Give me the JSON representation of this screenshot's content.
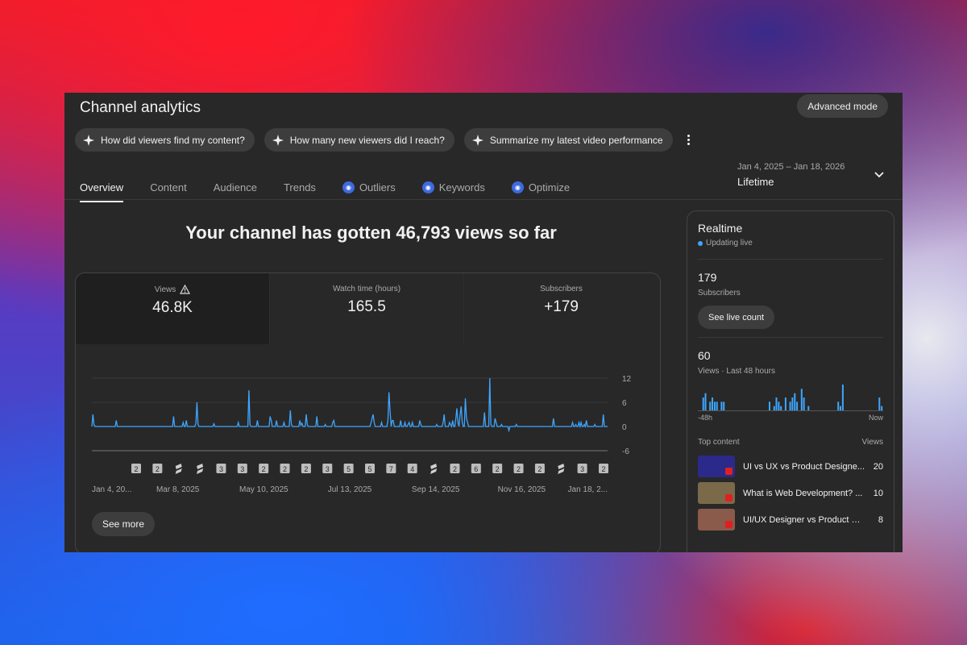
{
  "header": {
    "title": "Channel analytics",
    "advanced_mode": "Advanced mode"
  },
  "chips": [
    {
      "label": "How did viewers find my content?"
    },
    {
      "label": "How many new viewers did I reach?"
    },
    {
      "label": "Summarize my latest video performance"
    }
  ],
  "tabs": [
    {
      "label": "Overview",
      "active": true,
      "icon": false
    },
    {
      "label": "Content",
      "active": false,
      "icon": false
    },
    {
      "label": "Audience",
      "active": false,
      "icon": false
    },
    {
      "label": "Trends",
      "active": false,
      "icon": false
    },
    {
      "label": "Outliers",
      "active": false,
      "icon": true
    },
    {
      "label": "Keywords",
      "active": false,
      "icon": true
    },
    {
      "label": "Optimize",
      "active": false,
      "icon": true
    }
  ],
  "date_range": {
    "range": "Jan 4, 2025 – Jan 18, 2026",
    "period": "Lifetime"
  },
  "headline": "Your channel has gotten 46,793 views so far",
  "metrics": [
    {
      "label": "Views",
      "value": "46.8K",
      "warning": true
    },
    {
      "label": "Watch time (hours)",
      "value": "165.5",
      "warning": false
    },
    {
      "label": "Subscribers",
      "value": "+179",
      "warning": false
    }
  ],
  "see_more": "See more",
  "colors": {
    "accent": "#3ea6ff",
    "panel": "#282828"
  },
  "chart_data": {
    "type": "line",
    "series": [
      {
        "values": [
          0,
          3,
          0.5,
          0,
          0,
          0,
          0,
          0,
          0,
          0,
          0,
          0,
          0,
          0,
          0,
          0,
          0,
          0,
          0,
          0,
          0,
          0,
          0,
          1.5,
          0,
          0,
          0,
          0,
          0,
          0,
          0,
          0,
          0,
          0,
          0,
          0,
          0,
          0,
          0,
          0,
          0,
          0,
          0,
          0,
          0,
          0,
          0,
          0,
          0,
          0,
          0,
          0,
          0,
          0,
          0,
          0,
          0,
          0,
          0,
          0,
          0,
          0,
          0,
          0,
          0,
          0,
          0,
          0,
          0,
          0,
          0,
          0,
          0,
          0,
          0,
          0,
          0,
          2.5,
          0,
          0,
          0,
          0,
          0,
          0,
          0,
          0,
          1,
          0,
          0,
          1.5,
          0,
          0,
          0,
          0,
          0,
          0,
          0,
          0,
          0.8,
          6,
          0.5,
          0,
          0,
          0,
          0,
          0,
          0,
          0,
          0,
          0,
          0,
          0,
          0,
          0,
          0,
          0.7,
          0,
          0,
          0,
          0,
          0,
          0,
          0,
          0,
          0,
          0,
          0,
          0,
          0,
          0,
          0,
          0,
          0,
          0,
          0,
          0,
          0,
          0,
          1,
          0,
          0,
          0,
          0,
          0,
          0,
          0,
          0,
          0,
          9,
          0.5,
          0,
          0,
          0,
          0,
          0,
          0,
          1.5,
          0,
          0,
          0,
          0,
          0,
          0,
          0,
          0,
          0,
          0,
          0,
          2.5,
          1.5,
          0,
          0,
          0,
          0,
          1.5,
          0,
          0,
          0,
          0,
          0,
          0,
          1,
          0,
          0,
          0,
          0,
          0,
          4,
          0.5,
          0,
          0,
          0,
          0,
          0,
          0,
          0,
          1.5,
          0.3,
          0.8,
          0,
          0,
          0,
          3,
          0.5,
          0,
          0,
          0,
          0,
          0,
          0,
          0,
          0,
          2.5,
          0,
          0,
          0,
          0,
          0,
          0,
          0,
          0.5,
          0,
          0,
          0,
          0,
          0,
          0,
          1,
          1.5,
          0,
          0,
          0,
          0,
          0,
          0,
          0,
          0,
          0,
          0,
          0,
          0,
          0,
          0,
          0,
          0,
          0,
          0,
          0,
          0,
          0,
          0,
          0,
          0,
          0,
          0,
          0,
          0,
          0,
          0,
          0,
          0,
          0,
          0,
          0.8,
          2,
          3,
          1,
          0,
          0,
          0,
          0,
          0,
          0,
          1,
          0,
          0,
          0,
          0,
          0,
          1.5,
          8.5,
          4,
          0,
          1.5,
          1.5,
          0,
          0,
          0,
          0,
          0,
          0,
          1.5,
          0,
          0,
          0,
          1,
          0,
          0,
          0.5,
          1,
          0,
          0,
          1,
          0,
          0,
          0,
          0,
          0,
          0,
          1.5,
          0.5,
          0,
          0,
          0,
          0,
          0,
          0,
          0,
          0,
          0,
          0,
          0,
          0,
          0,
          0,
          0.5,
          0,
          0,
          0,
          0,
          0,
          1,
          3,
          0,
          0,
          0,
          0,
          1,
          0.5,
          0,
          1.5,
          0,
          0,
          2,
          4.5,
          1,
          0,
          3,
          5,
          1,
          0,
          0,
          7,
          2,
          1,
          0,
          0,
          0,
          0,
          0,
          0,
          0,
          0,
          0,
          0,
          0,
          0,
          0,
          0,
          0,
          3.5,
          0,
          0,
          0,
          0,
          12,
          0.5,
          0,
          0,
          0,
          2,
          1,
          0,
          0,
          0,
          0,
          0.5,
          0,
          0,
          0,
          0,
          0,
          0,
          -1,
          0,
          0,
          0,
          0,
          0,
          0,
          0.5,
          0,
          0,
          0,
          0,
          0,
          0,
          0,
          0,
          0,
          0,
          0,
          0,
          0,
          0,
          0,
          0,
          0,
          0,
          0,
          0,
          0,
          0,
          0,
          0,
          0,
          0,
          0,
          0,
          0,
          0,
          0,
          0,
          0,
          0,
          2,
          0,
          0,
          0,
          0,
          0,
          0,
          0,
          0,
          0,
          0,
          0,
          0,
          0,
          0,
          0,
          0,
          0,
          1,
          0,
          0,
          0.5,
          0,
          0,
          1,
          0,
          1,
          0,
          0,
          0.5,
          0,
          1.5,
          0,
          0,
          0,
          0,
          0,
          0,
          0,
          0.5,
          0,
          0,
          0,
          0,
          0,
          0,
          0,
          3,
          0,
          0,
          0,
          0
        ]
      }
    ],
    "x_tick_labels": [
      "Jan 4, 20...",
      "Mar 8, 2025",
      "May 10, 2025",
      "Jul 13, 2025",
      "Sep 14, 2025",
      "Nov 16, 2025",
      "Jan 18, 2..."
    ],
    "y_tick_labels": [
      "12",
      "6",
      "0",
      "-6"
    ],
    "ylim": [
      -6,
      12
    ],
    "grid": true,
    "markers": [
      {
        "label": "2",
        "kind": "count"
      },
      {
        "label": "2",
        "kind": "count"
      },
      {
        "label": "",
        "kind": "short"
      },
      {
        "label": "",
        "kind": "short"
      },
      {
        "label": "3",
        "kind": "count"
      },
      {
        "label": "3",
        "kind": "count"
      },
      {
        "label": "2",
        "kind": "count"
      },
      {
        "label": "2",
        "kind": "count"
      },
      {
        "label": "2",
        "kind": "count"
      },
      {
        "label": "3",
        "kind": "count"
      },
      {
        "label": "5",
        "kind": "count"
      },
      {
        "label": "5",
        "kind": "count"
      },
      {
        "label": "7",
        "kind": "count"
      },
      {
        "label": "4",
        "kind": "count"
      },
      {
        "label": "",
        "kind": "short"
      },
      {
        "label": "2",
        "kind": "count"
      },
      {
        "label": "6",
        "kind": "count"
      },
      {
        "label": "2",
        "kind": "count"
      },
      {
        "label": "2",
        "kind": "count"
      },
      {
        "label": "2",
        "kind": "count"
      },
      {
        "label": "",
        "kind": "short"
      },
      {
        "label": "3",
        "kind": "count"
      },
      {
        "label": "2",
        "kind": "count"
      }
    ]
  },
  "realtime": {
    "title": "Realtime",
    "status": "Updating live",
    "subscribers_value": "179",
    "subscribers_label": "Subscribers",
    "live_button": "See live count",
    "views_value": "60",
    "views_label": "Views · Last 48 hours",
    "axis_start": "-48h",
    "axis_end": "Now",
    "bars": [
      0,
      0,
      3,
      4,
      0,
      2,
      3,
      2,
      2,
      0,
      2,
      2,
      0,
      0,
      0,
      0,
      0,
      0,
      0,
      0,
      0,
      0,
      0,
      0,
      0,
      0,
      0,
      0,
      0,
      0,
      0,
      2,
      0,
      1,
      3,
      2,
      1,
      0,
      3,
      0,
      2,
      3,
      4,
      2,
      0,
      5,
      3,
      0,
      1,
      0,
      0,
      0,
      0,
      0,
      0,
      0,
      0,
      0,
      0,
      0,
      0,
      2,
      1,
      6,
      0,
      0,
      0,
      0,
      0,
      0,
      0,
      0,
      0,
      0,
      0,
      0,
      0,
      0,
      0,
      3,
      1
    ],
    "top_content_label": "Top content",
    "views_col_label": "Views",
    "top_content": [
      {
        "title": "UI vs UX vs Product Designe...",
        "views": "20",
        "thumb_color": "#2b2a8a"
      },
      {
        "title": "What is Web Development? ...",
        "views": "10",
        "thumb_color": "#7a6a4a"
      },
      {
        "title": "UI/UX Designer vs Product De...",
        "views": "8",
        "thumb_color": "#8a5a4a"
      }
    ]
  }
}
